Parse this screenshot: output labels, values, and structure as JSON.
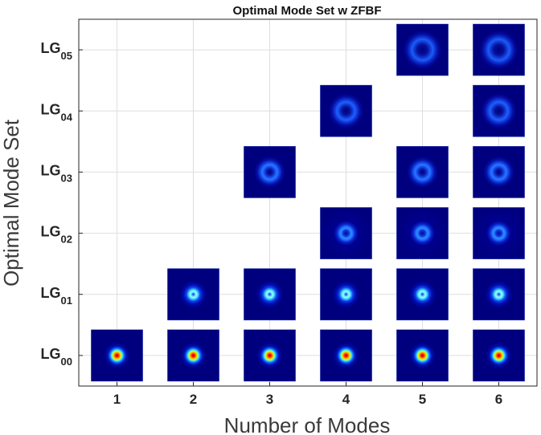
{
  "chart_data": {
    "type": "scatter",
    "title": "Optimal Mode Set w ZFBF",
    "xlabel": "Number of Modes",
    "ylabel": "Optimal Mode Set",
    "xlim": [
      0.5,
      6.5
    ],
    "ylim": [
      -0.5,
      5.5
    ],
    "x_ticks": [
      "1",
      "2",
      "3",
      "4",
      "5",
      "6"
    ],
    "y_ticks": [
      {
        "base": "LG",
        "sub": "00"
      },
      {
        "base": "LG",
        "sub": "01"
      },
      {
        "base": "LG",
        "sub": "02"
      },
      {
        "base": "LG",
        "sub": "03"
      },
      {
        "base": "LG",
        "sub": "04"
      },
      {
        "base": "LG",
        "sub": "05"
      }
    ],
    "grid": true,
    "marker": "LG mode intensity profile image",
    "points": [
      {
        "x": 1,
        "mode": "LG00"
      },
      {
        "x": 2,
        "mode": "LG00"
      },
      {
        "x": 2,
        "mode": "LG01"
      },
      {
        "x": 3,
        "mode": "LG00"
      },
      {
        "x": 3,
        "mode": "LG01"
      },
      {
        "x": 3,
        "mode": "LG03"
      },
      {
        "x": 4,
        "mode": "LG00"
      },
      {
        "x": 4,
        "mode": "LG01"
      },
      {
        "x": 4,
        "mode": "LG02"
      },
      {
        "x": 4,
        "mode": "LG04"
      },
      {
        "x": 5,
        "mode": "LG00"
      },
      {
        "x": 5,
        "mode": "LG01"
      },
      {
        "x": 5,
        "mode": "LG02"
      },
      {
        "x": 5,
        "mode": "LG03"
      },
      {
        "x": 5,
        "mode": "LG05"
      },
      {
        "x": 6,
        "mode": "LG00"
      },
      {
        "x": 6,
        "mode": "LG01"
      },
      {
        "x": 6,
        "mode": "LG02"
      },
      {
        "x": 6,
        "mode": "LG03"
      },
      {
        "x": 6,
        "mode": "LG04"
      },
      {
        "x": 6,
        "mode": "LG05"
      }
    ]
  },
  "colors": {
    "background": "#ffffff",
    "axes_frame": "#262626",
    "grid": "#dedede",
    "tile_background": "#00007f",
    "tile_border": "#4a6ad8"
  }
}
